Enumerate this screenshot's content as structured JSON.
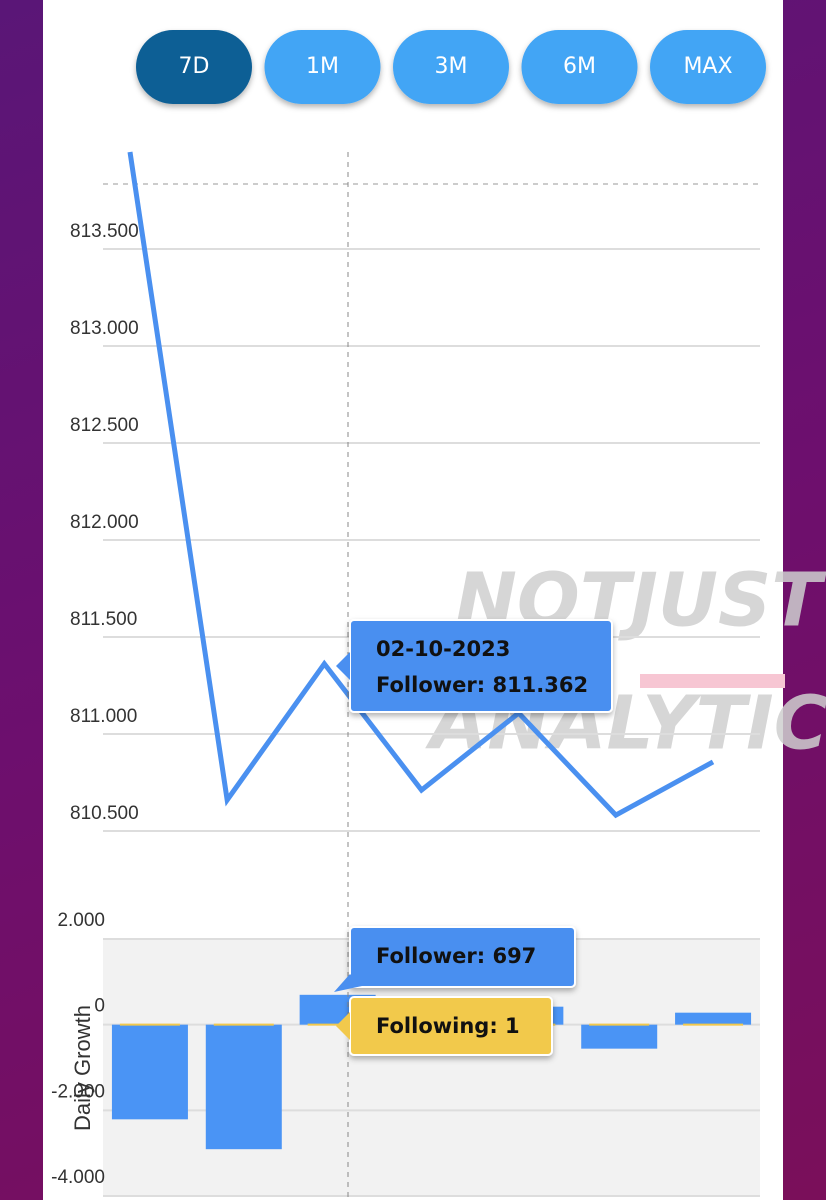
{
  "buttons": [
    {
      "label": "7D",
      "active": true
    },
    {
      "label": "1M",
      "active": false
    },
    {
      "label": "3M",
      "active": false
    },
    {
      "label": "6M",
      "active": false
    },
    {
      "label": "MAX",
      "active": false
    }
  ],
  "chart_data": [
    {
      "type": "line",
      "categories": [
        null,
        null,
        null,
        null,
        null,
        null,
        null
      ],
      "series": [
        {
          "color": "#4a90f0",
          "values": [
            814000,
            810660,
            811362,
            810711,
            811108,
            810582,
            810856
          ]
        }
      ],
      "ylim": [
        810500,
        814000
      ],
      "yticks": [
        {
          "value": 810500,
          "label": "810.500"
        },
        {
          "value": 811000,
          "label": "811.000"
        },
        {
          "value": 811500,
          "label": "811.500"
        },
        {
          "value": 812000,
          "label": "812.000"
        },
        {
          "value": 812500,
          "label": "812.500"
        },
        {
          "value": 813000,
          "label": "813.000"
        },
        {
          "value": 813500,
          "label": "813.500"
        }
      ],
      "grid": true
    },
    {
      "type": "bar",
      "y_label": "Daily Growth",
      "categories": [
        null,
        null,
        null,
        null,
        null,
        null,
        null
      ],
      "series": [
        {
          "color": "#4a94f5",
          "values": [
            -2210,
            -2907,
            697,
            -650,
            420,
            -560,
            280
          ]
        },
        {
          "color": "#f2c94c",
          "values": [
            1,
            1,
            1,
            1,
            1,
            1,
            1
          ]
        }
      ],
      "ylim": [
        -4000,
        2000
      ],
      "yticks": [
        {
          "value": 2000,
          "label": "2.000"
        },
        0,
        {
          "value": -2000,
          "label": "-2.000"
        },
        {
          "value": -4000,
          "label": "-4.000"
        }
      ],
      "grid": true
    }
  ],
  "tooltips": [
    {
      "lines": [
        "02-10-2023",
        "Follower: 811.362"
      ]
    },
    {
      "lines": [
        "Follower: 697"
      ]
    },
    {
      "lines": [
        "Following: 1"
      ]
    }
  ],
  "watermark": [
    "NOTJUST",
    "ANALYTICS"
  ]
}
